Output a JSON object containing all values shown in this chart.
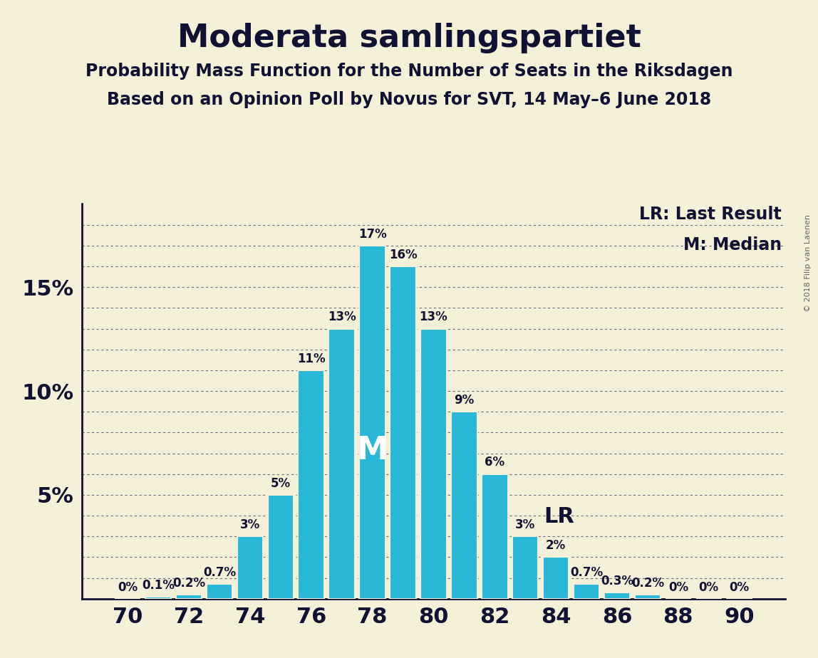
{
  "title": "Moderata samlingspartiet",
  "subtitle1": "Probability Mass Function for the Number of Seats in the Riksdagen",
  "subtitle2": "Based on an Opinion Poll by Novus for SVT, 14 May–6 June 2018",
  "copyright": "© 2018 Filip van Laenen",
  "seats": [
    70,
    71,
    72,
    73,
    74,
    75,
    76,
    77,
    78,
    79,
    80,
    81,
    82,
    83,
    84,
    85,
    86,
    87,
    88,
    89,
    90
  ],
  "values": [
    0.0,
    0.1,
    0.2,
    0.7,
    3.0,
    5.0,
    11.0,
    13.0,
    17.0,
    16.0,
    13.0,
    9.0,
    6.0,
    3.0,
    2.0,
    0.7,
    0.3,
    0.2,
    0.0,
    0.0,
    0.0
  ],
  "labels": [
    "0%",
    "0.1%",
    "0.2%",
    "0.7%",
    "3%",
    "5%",
    "11%",
    "13%",
    "17%",
    "16%",
    "13%",
    "9%",
    "6%",
    "3%",
    "2%",
    "0.7%",
    "0.3%",
    "0.2%",
    "0%",
    "0%",
    "0%"
  ],
  "bar_color": "#29b8d8",
  "bar_edge_color": "#f5f0d8",
  "background_color": "#f5f0d8",
  "median_seat": 78,
  "lr_seat": 83,
  "ylim": [
    0,
    19
  ],
  "yticks": [
    5,
    10,
    15
  ],
  "ytick_labels": [
    "5%",
    "10%",
    "15%"
  ],
  "xticks": [
    70,
    72,
    74,
    76,
    78,
    80,
    82,
    84,
    86,
    88,
    90
  ],
  "title_fontsize": 32,
  "subtitle_fontsize": 17,
  "axis_fontsize": 22,
  "label_fontsize": 12,
  "legend_fontsize": 17,
  "grid_color": "#333355",
  "text_color": "#111133"
}
